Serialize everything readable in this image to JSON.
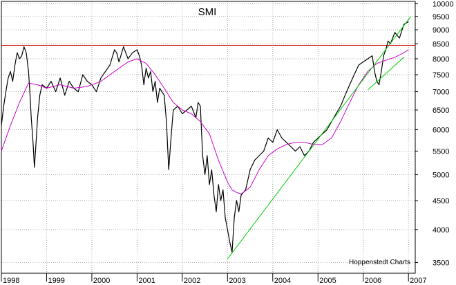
{
  "chart_data": {
    "type": "line",
    "title": "SMI",
    "credit": "Hoppenstedt Charts",
    "x_ticks": [
      "1998",
      "1999",
      "2000",
      "2001",
      "2002",
      "2003",
      "2004",
      "2005",
      "2006",
      "2007"
    ],
    "y_ticks": [
      3500,
      4000,
      4500,
      5000,
      5500,
      6000,
      6500,
      7000,
      7500,
      8000,
      8500,
      9000,
      9500,
      10000
    ],
    "xlim": [
      1998.0,
      2007.15
    ],
    "ylim": [
      3350,
      10100
    ],
    "y_scale": "log",
    "grid": true,
    "axis_side": "right",
    "colors": {
      "price": "#000000",
      "moving_average": "#cc00cc",
      "resistance": "#cc0000",
      "trendline": "#00cc00",
      "grid": "#aaaaaa"
    },
    "series": [
      {
        "role": "price",
        "x": [
          1998.0,
          1998.05,
          1998.1,
          1998.15,
          1998.2,
          1998.25,
          1998.3,
          1998.35,
          1998.4,
          1998.45,
          1998.5,
          1998.55,
          1998.6,
          1998.63,
          1998.66,
          1998.7,
          1998.73,
          1998.76,
          1998.8,
          1998.85,
          1998.9,
          1999.0,
          1999.1,
          1999.2,
          1999.3,
          1999.4,
          1999.5,
          1999.6,
          1999.7,
          1999.8,
          1999.9,
          2000.0,
          2000.1,
          2000.2,
          2000.3,
          2000.4,
          2000.5,
          2000.55,
          2000.6,
          2000.7,
          2000.8,
          2000.9,
          2001.0,
          2001.05,
          2001.1,
          2001.15,
          2001.2,
          2001.25,
          2001.3,
          2001.35,
          2001.4,
          2001.45,
          2001.5,
          2001.6,
          2001.65,
          2001.7,
          2001.75,
          2001.8,
          2001.9,
          2002.0,
          2002.1,
          2002.2,
          2002.3,
          2002.35,
          2002.4,
          2002.45,
          2002.5,
          2002.55,
          2002.6,
          2002.65,
          2002.7,
          2002.75,
          2002.8,
          2002.85,
          2002.9,
          2002.95,
          2003.0,
          2003.05,
          2003.1,
          2003.15,
          2003.2,
          2003.25,
          2003.3,
          2003.4,
          2003.5,
          2003.6,
          2003.7,
          2003.8,
          2003.9,
          2004.0,
          2004.1,
          2004.2,
          2004.3,
          2004.4,
          2004.5,
          2004.6,
          2004.7,
          2004.8,
          2004.9,
          2005.0,
          2005.1,
          2005.2,
          2005.3,
          2005.4,
          2005.5,
          2005.6,
          2005.7,
          2005.8,
          2005.9,
          2006.0,
          2006.1,
          2006.2,
          2006.25,
          2006.3,
          2006.35,
          2006.4,
          2006.45,
          2006.5,
          2006.55,
          2006.6,
          2006.7,
          2006.8,
          2006.9,
          2007.0
        ],
        "values": [
          6100,
          6600,
          7000,
          7400,
          7600,
          7300,
          7800,
          8200,
          8000,
          8100,
          8400,
          8200,
          7600,
          7000,
          6300,
          5700,
          5150,
          5600,
          6300,
          6900,
          7200,
          7100,
          7300,
          7000,
          7400,
          6900,
          7300,
          7100,
          7000,
          7500,
          7300,
          7200,
          7000,
          7400,
          7600,
          7800,
          8300,
          8200,
          7900,
          8400,
          8000,
          8200,
          8300,
          8100,
          7800,
          7200,
          7700,
          7400,
          7600,
          7000,
          7300,
          6700,
          7100,
          6900,
          6200,
          5100,
          5800,
          6500,
          6600,
          6400,
          6500,
          6600,
          6300,
          6700,
          6600,
          5400,
          5000,
          5400,
          4800,
          5100,
          4600,
          4300,
          4800,
          4500,
          4700,
          4200,
          4000,
          3800,
          3650,
          4200,
          4500,
          4300,
          4600,
          4700,
          5100,
          5300,
          5400,
          5500,
          5800,
          5700,
          6000,
          5800,
          5700,
          5600,
          5500,
          5600,
          5400,
          5500,
          5700,
          5800,
          5900,
          6000,
          6200,
          6400,
          6600,
          6900,
          7200,
          7500,
          7800,
          7900,
          8000,
          8100,
          7600,
          7300,
          7200,
          7600,
          8100,
          8300,
          8600,
          8500,
          8900,
          8700,
          9200,
          9300
        ]
      },
      {
        "role": "moving_average",
        "x": [
          1998.0,
          1998.2,
          1998.4,
          1998.6,
          1998.8,
          1999.0,
          1999.3,
          1999.6,
          1999.9,
          2000.2,
          2000.5,
          2000.8,
          2001.0,
          2001.2,
          2001.4,
          2001.6,
          2001.8,
          2002.0,
          2002.2,
          2002.4,
          2002.6,
          2002.8,
          2003.0,
          2003.1,
          2003.2,
          2003.3,
          2003.5,
          2003.7,
          2003.9,
          2004.1,
          2004.3,
          2004.5,
          2004.7,
          2004.9,
          2005.1,
          2005.3,
          2005.5,
          2005.7,
          2005.9,
          2006.1,
          2006.3,
          2006.5,
          2006.7,
          2006.9,
          2007.0
        ],
        "values": [
          5500,
          6100,
          6700,
          7250,
          7200,
          7100,
          7200,
          7100,
          7150,
          7300,
          7600,
          7900,
          8000,
          7850,
          7500,
          7100,
          6700,
          6500,
          6400,
          6200,
          5900,
          5300,
          4850,
          4700,
          4650,
          4620,
          4750,
          5100,
          5400,
          5550,
          5650,
          5700,
          5700,
          5650,
          5650,
          5800,
          6200,
          6700,
          7200,
          7600,
          7850,
          7950,
          8050,
          8200,
          8300
        ]
      },
      {
        "role": "trendline",
        "x": [
          2003.0,
          2007.05
        ],
        "values": [
          3550,
          9500
        ]
      },
      {
        "role": "trendline",
        "x": [
          2006.1,
          2006.9
        ],
        "values": [
          7050,
          8050
        ]
      },
      {
        "role": "resistance",
        "x": [
          1998.0,
          2007.15
        ],
        "values": [
          8450,
          8450
        ]
      }
    ]
  }
}
